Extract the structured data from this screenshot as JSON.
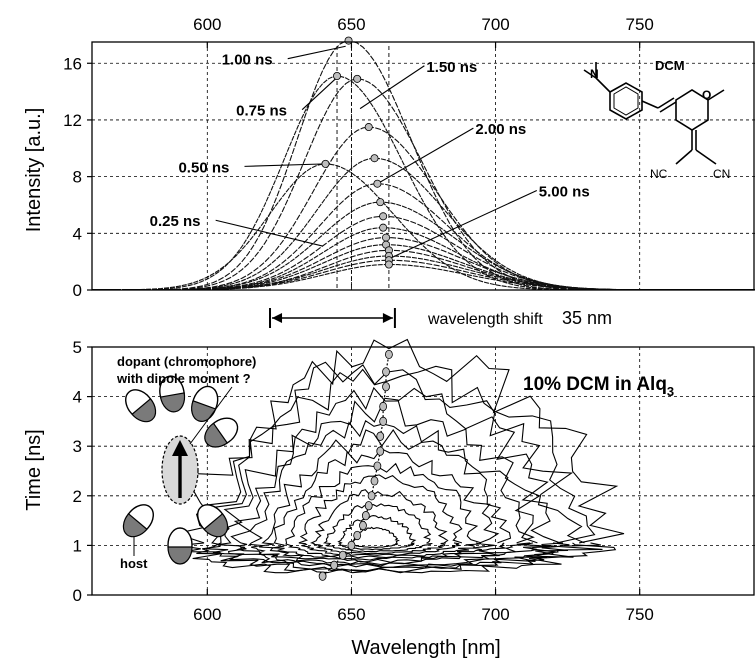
{
  "chart_data": [
    {
      "type": "line",
      "ylabel": "Intensity [a.u.]",
      "xlim": [
        560,
        790
      ],
      "ylim": [
        0,
        17.5
      ],
      "x_ticks": [
        "600",
        "650",
        "700",
        "750"
      ],
      "y_ticks": [
        "0",
        "4",
        "8",
        "12",
        "16"
      ],
      "x_axis_position": "top",
      "grid": true,
      "series_peaks": [
        {
          "peak_nm": 649,
          "peak_intensity": 17.6,
          "width_nm": 24
        },
        {
          "peak_nm": 645,
          "peak_intensity": 15.1,
          "width_nm": 25
        },
        {
          "peak_nm": 652,
          "peak_intensity": 14.9,
          "width_nm": 25
        },
        {
          "peak_nm": 641,
          "peak_intensity": 8.9,
          "width_nm": 26
        },
        {
          "peak_nm": 656,
          "peak_intensity": 11.5,
          "width_nm": 26
        },
        {
          "peak_nm": 658,
          "peak_intensity": 9.3,
          "width_nm": 27
        },
        {
          "peak_nm": 659,
          "peak_intensity": 7.5,
          "width_nm": 27
        },
        {
          "peak_nm": 660,
          "peak_intensity": 6.2,
          "width_nm": 28
        },
        {
          "peak_nm": 661,
          "peak_intensity": 5.2,
          "width_nm": 28
        },
        {
          "peak_nm": 661,
          "peak_intensity": 4.4,
          "width_nm": 28
        },
        {
          "peak_nm": 662,
          "peak_intensity": 3.7,
          "width_nm": 29
        },
        {
          "peak_nm": 662,
          "peak_intensity": 3.2,
          "width_nm": 29
        },
        {
          "peak_nm": 663,
          "peak_intensity": 2.8,
          "width_nm": 29
        },
        {
          "peak_nm": 663,
          "peak_intensity": 2.4,
          "width_nm": 30
        },
        {
          "peak_nm": 663,
          "peak_intensity": 2.1,
          "width_nm": 30
        },
        {
          "peak_nm": 663,
          "peak_intensity": 1.8,
          "width_nm": 30
        }
      ],
      "annotations": [
        {
          "text": "1.00 ns",
          "x": 605,
          "y": 15.9,
          "tx": 648,
          "ty": 17.2
        },
        {
          "text": "0.75 ns",
          "x": 610,
          "y": 12.3,
          "tx": 645,
          "ty": 15.0
        },
        {
          "text": "1.50 ns",
          "x": 676,
          "y": 15.4,
          "tx": 653,
          "ty": 12.8
        },
        {
          "text": "0.50 ns",
          "x": 590,
          "y": 8.3,
          "tx": 641,
          "ty": 8.9
        },
        {
          "text": "2.00 ns",
          "x": 693,
          "y": 11.0,
          "tx": 659,
          "ty": 7.5
        },
        {
          "text": "0.25 ns",
          "x": 580,
          "y": 4.5,
          "tx": 640,
          "ty": 3.1
        },
        {
          "text": "5.00 ns",
          "x": 715,
          "y": 6.6,
          "tx": 663,
          "ty": 2.2
        }
      ],
      "wavelength_shift_label": "wavelength shift",
      "wavelength_shift_value": "35 nm",
      "shift_from_nm": 628,
      "shift_to_nm": 663,
      "molecule_label": "DCM",
      "molecule_groups": [
        "NC",
        "CN"
      ]
    },
    {
      "type": "contour",
      "xlabel": "Wavelength [nm]",
      "ylabel": "Time [ns]",
      "xlim": [
        560,
        790
      ],
      "ylim": [
        0,
        5
      ],
      "x_ticks": [
        "600",
        "650",
        "700",
        "750"
      ],
      "y_ticks": [
        "0",
        "1",
        "2",
        "3",
        "4",
        "5"
      ],
      "grid": true,
      "center_trace": {
        "wavelength": [
          640,
          644,
          647,
          650,
          652,
          654,
          655,
          656,
          657,
          658,
          659,
          660,
          660,
          661,
          661,
          662,
          662,
          663
        ],
        "time": [
          0.38,
          0.6,
          0.8,
          1.0,
          1.2,
          1.4,
          1.6,
          1.8,
          2.0,
          2.3,
          2.6,
          2.9,
          3.2,
          3.5,
          3.8,
          4.2,
          4.5,
          4.85
        ]
      },
      "contour_levels": 14,
      "title_main": "10% DCM in Alq",
      "title_sub": "3",
      "inset_labels": {
        "dopant": "dopant (chromophore)",
        "dipole": "with dipole moment ?",
        "host": "host"
      }
    }
  ]
}
